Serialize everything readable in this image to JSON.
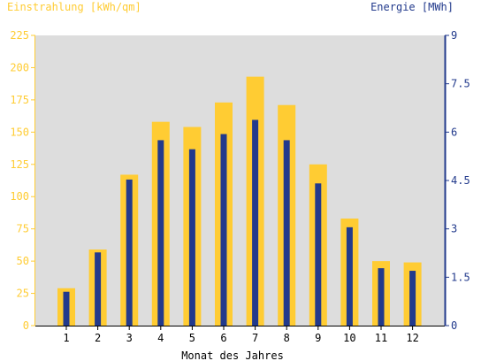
{
  "chart_data": {
    "type": "bar",
    "title_left": "Einstrahlung [kWh/qm]",
    "title_right": "Energie [MWh]",
    "xlabel": "Monat des Jahres",
    "categories": [
      "1",
      "2",
      "3",
      "4",
      "5",
      "6",
      "7",
      "8",
      "9",
      "10",
      "11",
      "12"
    ],
    "series": [
      {
        "name": "Einstrahlung [kWh/qm]",
        "axis": "left",
        "color": "#ffcc33",
        "values": [
          29,
          59,
          117,
          158,
          154,
          173,
          193,
          171,
          125,
          83,
          50,
          49
        ]
      },
      {
        "name": "Energie [MWh]",
        "axis": "right",
        "color": "#223a8c",
        "values": [
          1.05,
          2.27,
          4.53,
          5.75,
          5.47,
          5.94,
          6.38,
          5.75,
          4.41,
          3.05,
          1.78,
          1.7
        ]
      }
    ],
    "ylim_left": [
      0,
      225
    ],
    "yticks_left": [
      0,
      25,
      50,
      75,
      100,
      125,
      150,
      175,
      200,
      225
    ],
    "ylim_right": [
      0,
      9
    ],
    "yticks_right": [
      "0",
      "1.5",
      "3",
      "4.5",
      "6",
      "7.5",
      "9"
    ],
    "yticks_right_values": [
      0,
      1.5,
      3,
      4.5,
      6,
      7.5,
      9
    ],
    "plot_background": "#dddddd",
    "left_axis_color": "#ffcc33",
    "right_axis_color": "#223a8c",
    "grid": false,
    "legend": "none"
  }
}
